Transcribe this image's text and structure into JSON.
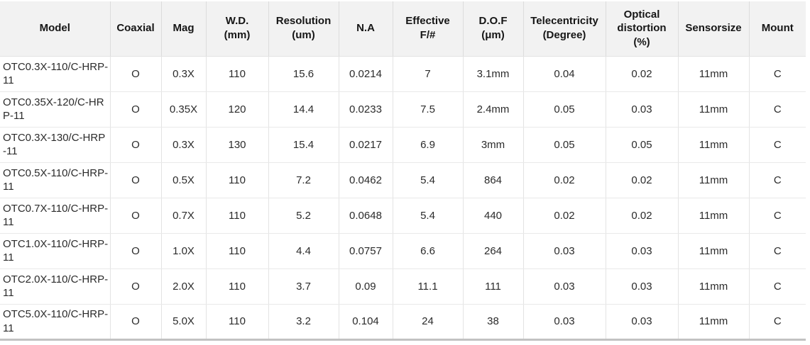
{
  "table": {
    "name": "telecentric-lens-specifications",
    "columns": [
      "Model",
      "Coaxial",
      "Mag",
      "W.D.\n(mm)",
      "Resolution\n(um)",
      "N.A",
      "Effective\nF/#",
      "D.O.F\n(μm)",
      "Telecentricity\n(Degree)",
      "Optical\ndistortion\n(%)",
      "Sensorsize",
      "Mount"
    ],
    "rows": [
      [
        "OTC0.3X-110/C-HRP-11",
        "O",
        "0.3X",
        "110",
        "15.6",
        "0.0214",
        "7",
        "3.1mm",
        "0.04",
        "0.02",
        "11mm",
        "C"
      ],
      [
        "OTC0.35X-120/C-HRP-11",
        "O",
        "0.35X",
        "120",
        "14.4",
        "0.0233",
        "7.5",
        "2.4mm",
        "0.05",
        "0.03",
        "11mm",
        "C"
      ],
      [
        "OTC0.3X-130/C-HRP-11",
        "O",
        "0.3X",
        "130",
        "15.4",
        "0.0217",
        "6.9",
        "3mm",
        "0.05",
        "0.05",
        "11mm",
        "C"
      ],
      [
        "OTC0.5X-110/C-HRP-11",
        "O",
        "0.5X",
        "110",
        "7.2",
        "0.0462",
        "5.4",
        "864",
        "0.02",
        "0.02",
        "11mm",
        "C"
      ],
      [
        "OTC0.7X-110/C-HRP-11",
        "O",
        "0.7X",
        "110",
        "5.2",
        "0.0648",
        "5.4",
        "440",
        "0.02",
        "0.02",
        "11mm",
        "C"
      ],
      [
        "OTC1.0X-110/C-HRP-11",
        "O",
        "1.0X",
        "110",
        "4.4",
        "0.0757",
        "6.6",
        "264",
        "0.03",
        "0.03",
        "11mm",
        "C"
      ],
      [
        "OTC2.0X-110/C-HRP-11",
        "O",
        "2.0X",
        "110",
        "3.7",
        "0.09",
        "11.1",
        "111",
        "0.03",
        "0.03",
        "11mm",
        "C"
      ],
      [
        "OTC5.0X-110/C-HRP-11",
        "O",
        "5.0X",
        "110",
        "3.2",
        "0.104",
        "24",
        "38",
        "0.03",
        "0.03",
        "11mm",
        "C"
      ]
    ],
    "colors": {
      "header_background": "#f2f2f2",
      "column_border": "#dcdcdc",
      "row_border": "#e9e9e9",
      "bottom_border": "#c2c2c2",
      "header_text": "#161616",
      "body_text": "#2b2b2b"
    }
  }
}
